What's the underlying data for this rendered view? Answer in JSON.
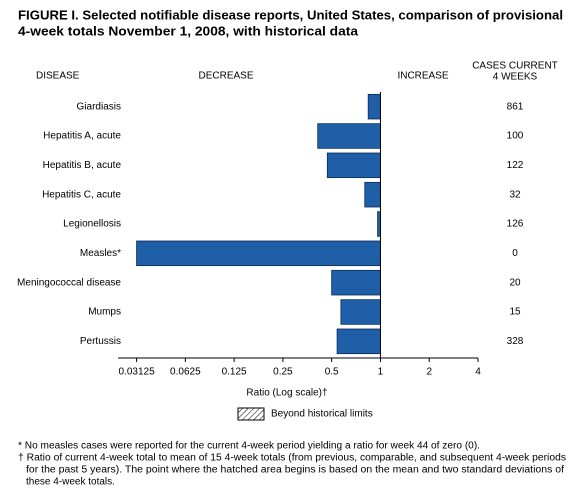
{
  "chart_data": {
    "type": "bar",
    "orientation": "horizontal",
    "title": [
      "FIGURE I. Selected notifiable disease reports, United States, comparison of provisional",
      "4-week totals November 1, 2008, with historical data"
    ],
    "category_header": "DISEASE",
    "decrease_label": "DECREASE",
    "increase_label": "INCREASE",
    "cases_header": [
      "CASES CURRENT",
      "4 WEEKS"
    ],
    "categories": [
      "Giardiasis",
      "Hepatitis A, acute",
      "Hepatitis B, acute",
      "Hepatitis C, acute",
      "Legionellosis",
      "Measles*",
      "Meningococcal disease",
      "Mumps",
      "Pertussis"
    ],
    "values": [
      0.84,
      0.41,
      0.47,
      0.8,
      0.96,
      0.03125,
      0.5,
      0.57,
      0.54
    ],
    "cases": [
      861,
      100,
      122,
      32,
      126,
      0,
      20,
      15,
      328
    ],
    "color": "#1f5fa8",
    "xlabel": "Ratio (Log scale)†",
    "xscale": "log",
    "xlim": [
      0.024,
      4
    ],
    "xticks": [
      0.03125,
      0.0625,
      0.125,
      0.25,
      0.5,
      1,
      2,
      4
    ],
    "legend": "Beyond historical limits",
    "footnotes": [
      "* No measles cases were reported for the current 4-week period yielding a ratio for week 44 of zero (0).",
      "† Ratio of current 4-week total to mean of 15 4-week totals (from previous, comparable, and subsequent 4-week periods",
      "for the past 5 years). The point where the hatched area begins is based on the mean and two standard deviations of",
      "these 4-week totals."
    ]
  }
}
